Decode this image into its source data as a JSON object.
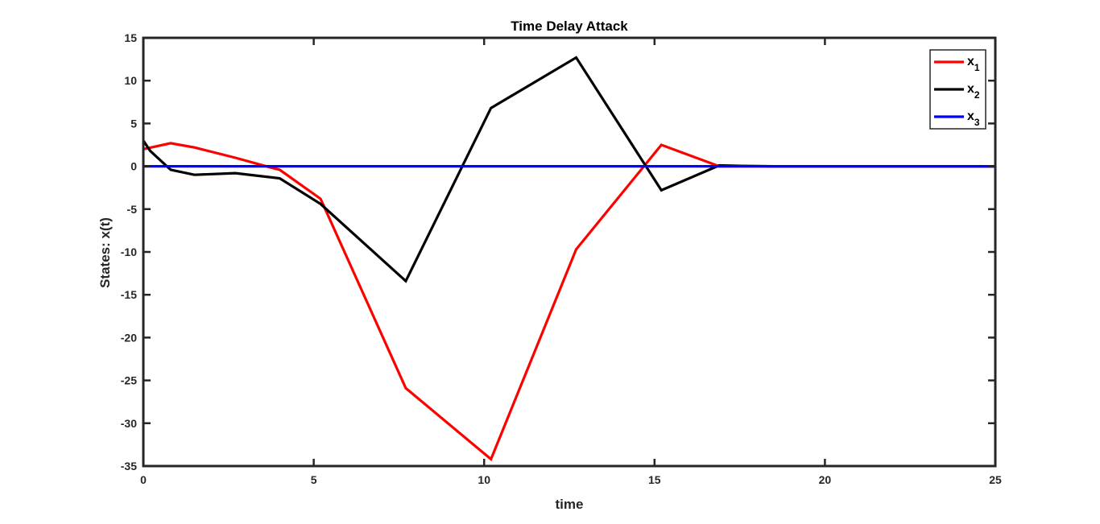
{
  "chart_data": {
    "type": "line",
    "title": "Time Delay Attack",
    "xlabel": "time",
    "ylabel": "States: x(t)",
    "xlim": [
      0,
      25
    ],
    "ylim": [
      -35,
      15
    ],
    "xticks": [
      0,
      5,
      10,
      15,
      20,
      25
    ],
    "yticks": [
      15,
      10,
      5,
      0,
      -5,
      -10,
      -15,
      -20,
      -25,
      -30,
      -35
    ],
    "grid": false,
    "legend_position": "top-right",
    "series": [
      {
        "name": "x",
        "subscript": "1",
        "color": "#ff0000",
        "x": [
          0,
          0.8,
          1.5,
          2.7,
          3.7,
          4.0,
          5.2,
          7.7,
          10.2,
          12.7,
          15.2,
          16.9,
          17.5,
          18.5,
          20,
          25
        ],
        "y": [
          2.0,
          2.7,
          2.2,
          1.0,
          -0.1,
          -0.4,
          -3.8,
          -25.9,
          -34.2,
          -9.7,
          2.5,
          0.0,
          0.0,
          0.0,
          0.0,
          0.0
        ]
      },
      {
        "name": "x",
        "subscript": "2",
        "color": "#000000",
        "x": [
          0,
          0.2,
          0.8,
          1.5,
          2.7,
          4.0,
          5.2,
          7.7,
          10.2,
          12.7,
          15.2,
          16.9,
          17.5,
          18.5,
          20,
          25
        ],
        "y": [
          3.0,
          1.8,
          -0.4,
          -1.0,
          -0.8,
          -1.4,
          -4.4,
          -13.4,
          6.8,
          12.7,
          -2.8,
          0.1,
          0.05,
          0.0,
          0.0,
          0.0
        ]
      },
      {
        "name": "x",
        "subscript": "3",
        "color": "#0000ff",
        "x": [
          0,
          25
        ],
        "y": [
          0.0,
          0.0
        ]
      }
    ]
  }
}
